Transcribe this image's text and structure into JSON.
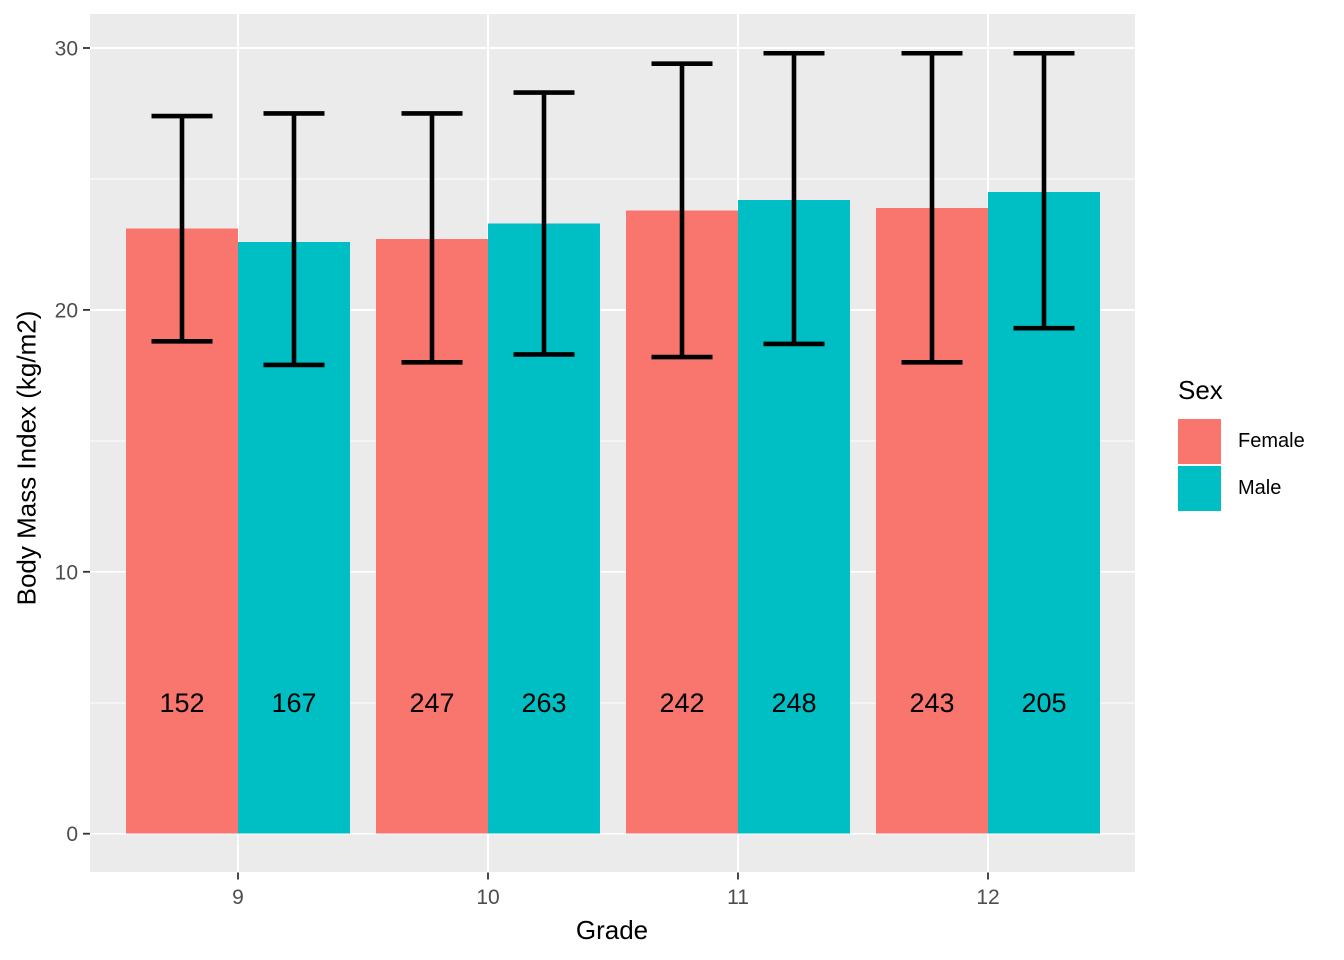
{
  "chart_data": {
    "type": "bar",
    "title": "",
    "xlabel": "Grade",
    "ylabel": "Body Mass Index (kg/m2)",
    "legend_title": "Sex",
    "legend_position": "right",
    "grid": true,
    "categories": [
      "9",
      "10",
      "11",
      "12"
    ],
    "series": [
      {
        "name": "Female",
        "color": "#F8766D",
        "means": [
          23.1,
          22.7,
          23.8,
          23.9
        ],
        "error_low": [
          18.8,
          18.0,
          18.2,
          18.0
        ],
        "error_high": [
          27.4,
          27.5,
          29.4,
          29.8
        ],
        "bar_labels": [
          "152",
          "247",
          "242",
          "243"
        ]
      },
      {
        "name": "Male",
        "color": "#00BFC4",
        "means": [
          22.6,
          23.3,
          24.2,
          24.5
        ],
        "error_low": [
          17.9,
          18.3,
          18.7,
          19.3
        ],
        "error_high": [
          27.5,
          28.3,
          29.8,
          29.8
        ],
        "bar_labels": [
          "167",
          "263",
          "248",
          "205"
        ]
      }
    ],
    "y_axis": {
      "major_ticks": [
        0,
        10,
        20,
        30
      ],
      "minor_gridlines": [
        5,
        15,
        25
      ],
      "visible_range": [
        -1.5,
        31.3
      ]
    },
    "bar_label_y": 5,
    "colors": {
      "panel_background": "#EBEBEB",
      "gridline": "#FFFFFF",
      "error_bar": "#000000",
      "tick_mark": "#333333",
      "tick_label": "#4D4D4D",
      "axis_title": "#000000",
      "bar_label": "#000000"
    }
  }
}
